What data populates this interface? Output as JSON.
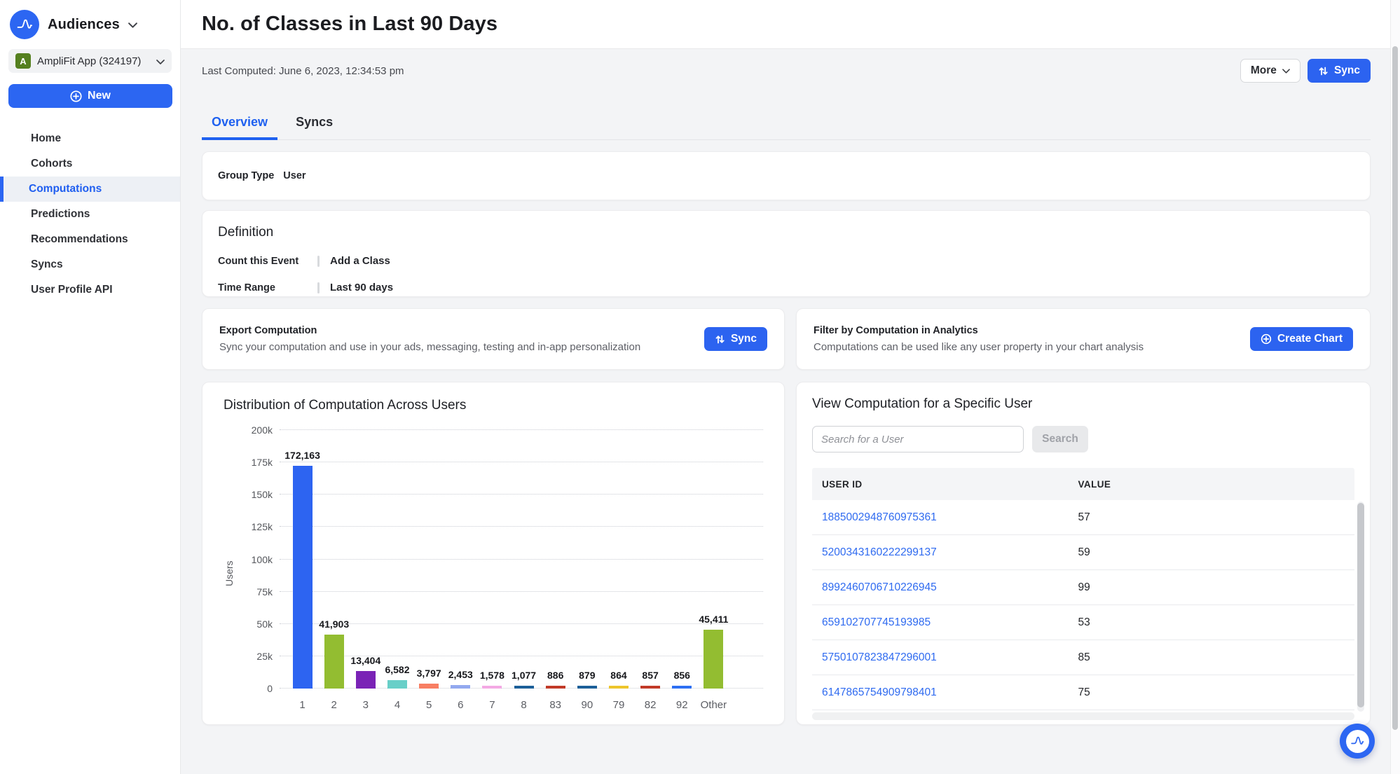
{
  "sidebar": {
    "product": "Audiences",
    "project": {
      "badge": "A",
      "name": "AmpliFit App (324197)"
    },
    "new_button": "New",
    "items": [
      {
        "label": "Home",
        "active": false
      },
      {
        "label": "Cohorts",
        "active": false
      },
      {
        "label": "Computations",
        "active": true
      },
      {
        "label": "Predictions",
        "active": false
      },
      {
        "label": "Recommendations",
        "active": false
      },
      {
        "label": "Syncs",
        "active": false
      },
      {
        "label": "User Profile API",
        "active": false
      }
    ]
  },
  "header": {
    "title": "No. of Classes in Last 90 Days",
    "last_computed": "Last Computed: June 6, 2023, 12:34:53 pm",
    "more_label": "More",
    "sync_label": "Sync"
  },
  "tabs": [
    {
      "label": "Overview",
      "active": true
    },
    {
      "label": "Syncs",
      "active": false
    }
  ],
  "group_type": {
    "label": "Group Type",
    "value": "User"
  },
  "definition": {
    "title": "Definition",
    "rows": [
      {
        "label": "Count this Event",
        "value": "Add a Class"
      },
      {
        "label": "Time Range",
        "value": "Last 90 days"
      }
    ]
  },
  "export_card": {
    "title": "Export Computation",
    "description": "Sync your computation and use in your ads, messaging, testing and in-app personalization",
    "button": "Sync"
  },
  "filter_card": {
    "title": "Filter by Computation in Analytics",
    "description": "Computations can be used like any user property in your chart analysis",
    "button": "Create Chart"
  },
  "chart_data": {
    "type": "bar",
    "title": "Distribution of Computation Across Users",
    "categories": [
      "1",
      "2",
      "3",
      "4",
      "5",
      "6",
      "7",
      "8",
      "83",
      "90",
      "79",
      "82",
      "92",
      "Other"
    ],
    "values": [
      172163,
      41903,
      13404,
      6582,
      3797,
      2453,
      1578,
      1077,
      886,
      879,
      864,
      857,
      856,
      45411
    ],
    "value_labels": [
      "172,163",
      "41,903",
      "13,404",
      "6,582",
      "3,797",
      "2,453",
      "1,578",
      "1,077",
      "886",
      "879",
      "864",
      "857",
      "856",
      "45,411"
    ],
    "bar_colors": [
      "#2d64f1",
      "#93bd31",
      "#7a23b6",
      "#68cfc8",
      "#f87e63",
      "#93a9ef",
      "#f4a9e4",
      "#1b5f98",
      "#c13a28",
      "#1b5f98",
      "#edc52c",
      "#c13a28",
      "#2d6ff3",
      "#93bd31"
    ],
    "xlabel": "",
    "ylabel": "Users",
    "ylim": [
      0,
      200000
    ],
    "yticks": [
      {
        "label": "200k",
        "value": 200000
      },
      {
        "label": "175k",
        "value": 175000
      },
      {
        "label": "150k",
        "value": 150000
      },
      {
        "label": "125k",
        "value": 125000
      },
      {
        "label": "100k",
        "value": 100000
      },
      {
        "label": "75k",
        "value": 75000
      },
      {
        "label": "50k",
        "value": 50000
      },
      {
        "label": "25k",
        "value": 25000
      },
      {
        "label": "0",
        "value": 0
      }
    ],
    "grid": "horizontal-dotted",
    "legend": "none"
  },
  "user_panel": {
    "title": "View Computation for a Specific User",
    "search_placeholder": "Search for a User",
    "search_button": "Search",
    "table": {
      "columns": [
        "USER ID",
        "VALUE"
      ],
      "rows": [
        {
          "user_id": "1885002948760975361",
          "value": "57"
        },
        {
          "user_id": "5200343160222299137",
          "value": "59"
        },
        {
          "user_id": "8992460706710226945",
          "value": "99"
        },
        {
          "user_id": "659102707745193985",
          "value": "53"
        },
        {
          "user_id": "5750107823847296001",
          "value": "85"
        },
        {
          "user_id": "6147865754909798401",
          "value": "75"
        }
      ]
    }
  },
  "colors": {
    "accent_blue": "#2c66f2",
    "active_nav_blue": "#1f5ef0",
    "link_blue": "#2e6af0",
    "badge_green": "#55801f"
  }
}
